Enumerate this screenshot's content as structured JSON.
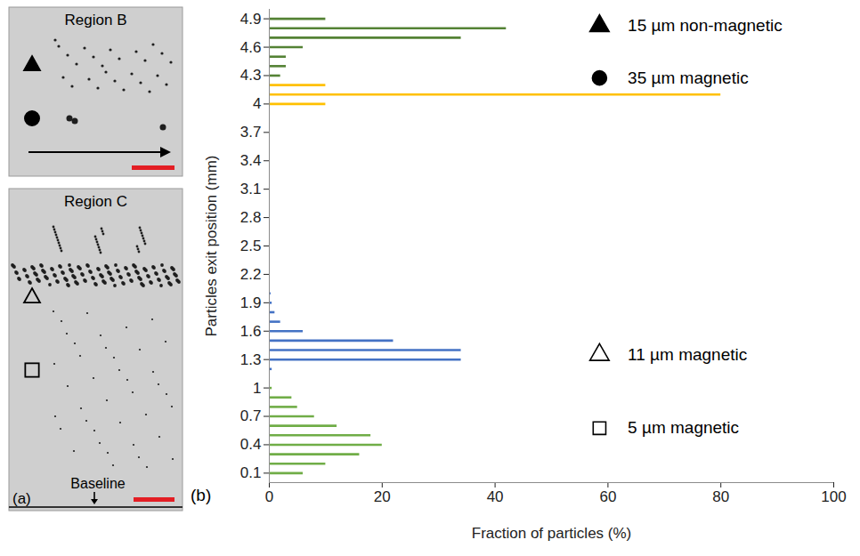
{
  "chart_data": {
    "type": "bar",
    "orientation": "horizontal",
    "xlabel": "Fraction of particles (%)",
    "ylabel": "Particles exit position (mm)",
    "xlim": [
      0,
      100
    ],
    "xticks": [
      0,
      20,
      40,
      60,
      80,
      100
    ],
    "ylim": [
      0,
      5
    ],
    "yticks": [
      0.1,
      0.4,
      0.7,
      1,
      1.3,
      1.6,
      1.9,
      2.2,
      2.5,
      2.8,
      3.1,
      3.4,
      3.7,
      4,
      4.3,
      4.6,
      4.9
    ],
    "grid": false,
    "legend": "right",
    "annotations": [
      "(b)"
    ],
    "series": [
      {
        "name": "15 µm non-magnetic",
        "color": "#548235",
        "marker": "triangle",
        "y": [
          4.3,
          4.4,
          4.5,
          4.6,
          4.7,
          4.8,
          4.9
        ],
        "values": [
          2,
          3,
          3,
          6,
          34,
          42,
          10
        ]
      },
      {
        "name": "35 µm magnetic",
        "color": "#ffc000",
        "marker": "circle",
        "y": [
          4.0,
          4.1,
          4.2
        ],
        "values": [
          10,
          80,
          10
        ]
      },
      {
        "name": "11 µm magnetic",
        "color": "#4472c4",
        "marker": "triangle-open",
        "y": [
          1.2,
          1.3,
          1.4,
          1.5,
          1.6,
          1.7,
          1.8,
          1.9,
          2.0
        ],
        "values": [
          0.5,
          34,
          34,
          22,
          6,
          2,
          1,
          0.5,
          0.3
        ]
      },
      {
        "name": "5 µm magnetic",
        "color": "#70ad47",
        "marker": "square-open",
        "y": [
          0.1,
          0.2,
          0.3,
          0.4,
          0.5,
          0.6,
          0.7,
          0.8,
          0.9,
          1.0
        ],
        "values": [
          6,
          10,
          16,
          20,
          18,
          12,
          8,
          5,
          4,
          0.5
        ]
      }
    ]
  },
  "images": {
    "label": "(a)",
    "panels": [
      {
        "title": "Region B",
        "markers": [
          "triangle",
          "circle"
        ]
      },
      {
        "title": "Region C",
        "markers": [
          "triangle-open",
          "square-open"
        ],
        "annotation": "Baseline"
      }
    ]
  }
}
